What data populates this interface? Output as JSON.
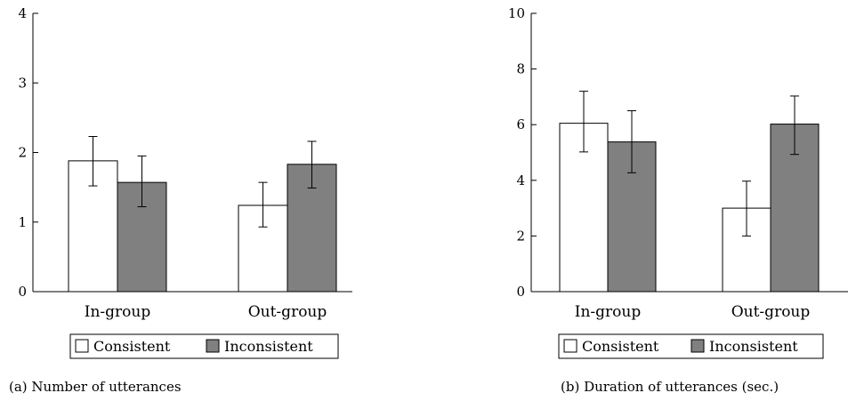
{
  "chart_data": [
    {
      "type": "bar",
      "title": "",
      "xlabel": "",
      "ylabel": "",
      "ylim": [
        0,
        4
      ],
      "yticks": [
        0,
        1,
        2,
        3,
        4
      ],
      "categories": [
        "In-group",
        "Out-group"
      ],
      "series": [
        {
          "name": "Consistent",
          "color": "#ffffff",
          "values": [
            1.88,
            1.24
          ],
          "err_low": [
            1.52,
            0.93
          ],
          "err_high": [
            2.23,
            1.57
          ]
        },
        {
          "name": "Inconsistent",
          "color": "#808080",
          "values": [
            1.57,
            1.83
          ],
          "err_low": [
            1.22,
            1.49
          ],
          "err_high": [
            1.95,
            2.16
          ]
        }
      ],
      "legend_position": "bottom",
      "caption": "(a) Number of utterances"
    },
    {
      "type": "bar",
      "title": "",
      "xlabel": "",
      "ylabel": "",
      "ylim": [
        0,
        10
      ],
      "yticks": [
        0,
        2,
        4,
        6,
        8,
        10
      ],
      "categories": [
        "In-group",
        "Out-group"
      ],
      "series": [
        {
          "name": "Consistent",
          "color": "#ffffff",
          "values": [
            6.05,
            3.0
          ],
          "err_low": [
            5.02,
            2.0
          ],
          "err_high": [
            7.2,
            3.97
          ]
        },
        {
          "name": "Inconsistent",
          "color": "#808080",
          "values": [
            5.38,
            6.02
          ],
          "err_low": [
            4.27,
            4.93
          ],
          "err_high": [
            6.5,
            7.03
          ]
        }
      ],
      "legend_position": "bottom",
      "caption": "(b) Duration of utterances (sec.)"
    }
  ]
}
